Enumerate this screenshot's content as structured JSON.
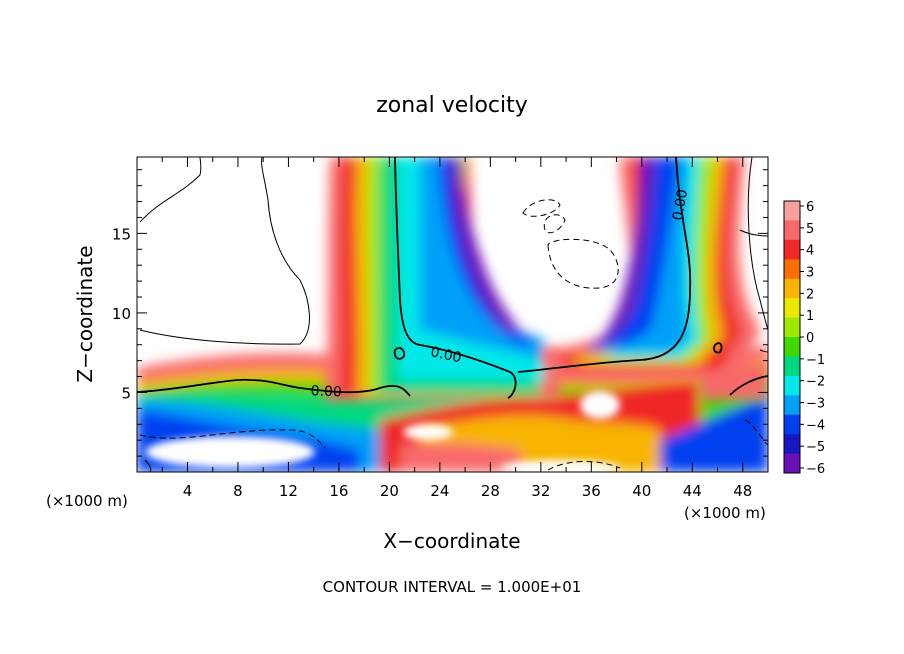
{
  "chart_data": {
    "type": "heatmap",
    "title": "zonal velocity",
    "xlabel": "X−coordinate",
    "ylabel": "Z−coordinate",
    "x_unit_left": "(×1000 m)",
    "x_unit_right": "(×1000 m)",
    "footer": "CONTOUR INTERVAL = 1.000E+01",
    "xlim": [
      0,
      50
    ],
    "ylim": [
      0,
      19.8
    ],
    "x_ticks": [
      4,
      8,
      12,
      16,
      20,
      24,
      28,
      32,
      36,
      40,
      44,
      48
    ],
    "y_ticks": [
      5,
      10,
      15
    ],
    "contour_labels": [
      {
        "text": "0.00",
        "x": 43,
        "y": 16.8,
        "rotate": -80
      },
      {
        "text": "0.00",
        "x": 24.5,
        "y": 7.4,
        "rotate": 12
      },
      {
        "text": "0.00",
        "x": 15,
        "y": 5.1,
        "rotate": 2
      }
    ],
    "colorbar": {
      "min": -6,
      "max": 6,
      "labels": [
        "6",
        "5",
        "4",
        "3",
        "2",
        "1",
        "0",
        "−1",
        "−2",
        "−3",
        "−4",
        "−5",
        "−6"
      ],
      "colors": [
        "#f8a0a0",
        "#f86a6a",
        "#f02828",
        "#f86e00",
        "#f8b400",
        "#e8e800",
        "#a0e800",
        "#40d800",
        "#00d880",
        "#00e8e8",
        "#00a0f8",
        "#0040f0",
        "#1818c0",
        "#6a10b8"
      ]
    }
  }
}
